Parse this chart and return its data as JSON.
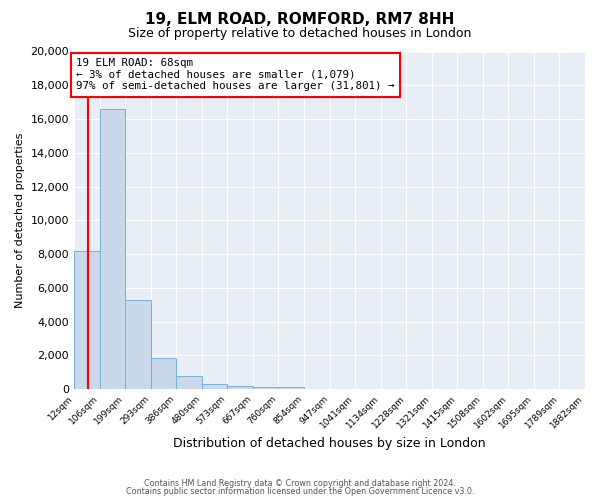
{
  "title": "19, ELM ROAD, ROMFORD, RM7 8HH",
  "subtitle": "Size of property relative to detached houses in London",
  "xlabel": "Distribution of detached houses by size in London",
  "ylabel": "Number of detached properties",
  "bar_heights": [
    8200,
    16600,
    5300,
    1850,
    800,
    300,
    200,
    150,
    150,
    0,
    0,
    0,
    0,
    0,
    0,
    0,
    0,
    0,
    0,
    0
  ],
  "bar_labels": [
    "12sqm",
    "106sqm",
    "199sqm",
    "293sqm",
    "386sqm",
    "480sqm",
    "573sqm",
    "667sqm",
    "760sqm",
    "854sqm",
    "947sqm",
    "1041sqm",
    "1134sqm",
    "1228sqm",
    "1321sqm",
    "1415sqm",
    "1508sqm",
    "1602sqm",
    "1695sqm",
    "1789sqm",
    "1882sqm"
  ],
  "bar_color": "#c9d9ea",
  "bar_edge_color": "#7bafd4",
  "background_color": "#e8eef5",
  "grid_color": "#ffffff",
  "ylim": [
    0,
    20000
  ],
  "yticks": [
    0,
    2000,
    4000,
    6000,
    8000,
    10000,
    12000,
    14000,
    16000,
    18000,
    20000
  ],
  "red_line_x": 0.56,
  "ann_title": "19 ELM ROAD: 68sqm",
  "ann_line2": "← 3% of detached houses are smaller (1,079)",
  "ann_line3": "97% of semi-detached houses are larger (31,801) →",
  "footer_line1": "Contains HM Land Registry data © Crown copyright and database right 2024.",
  "footer_line2": "Contains public sector information licensed under the Open Government Licence v3.0."
}
